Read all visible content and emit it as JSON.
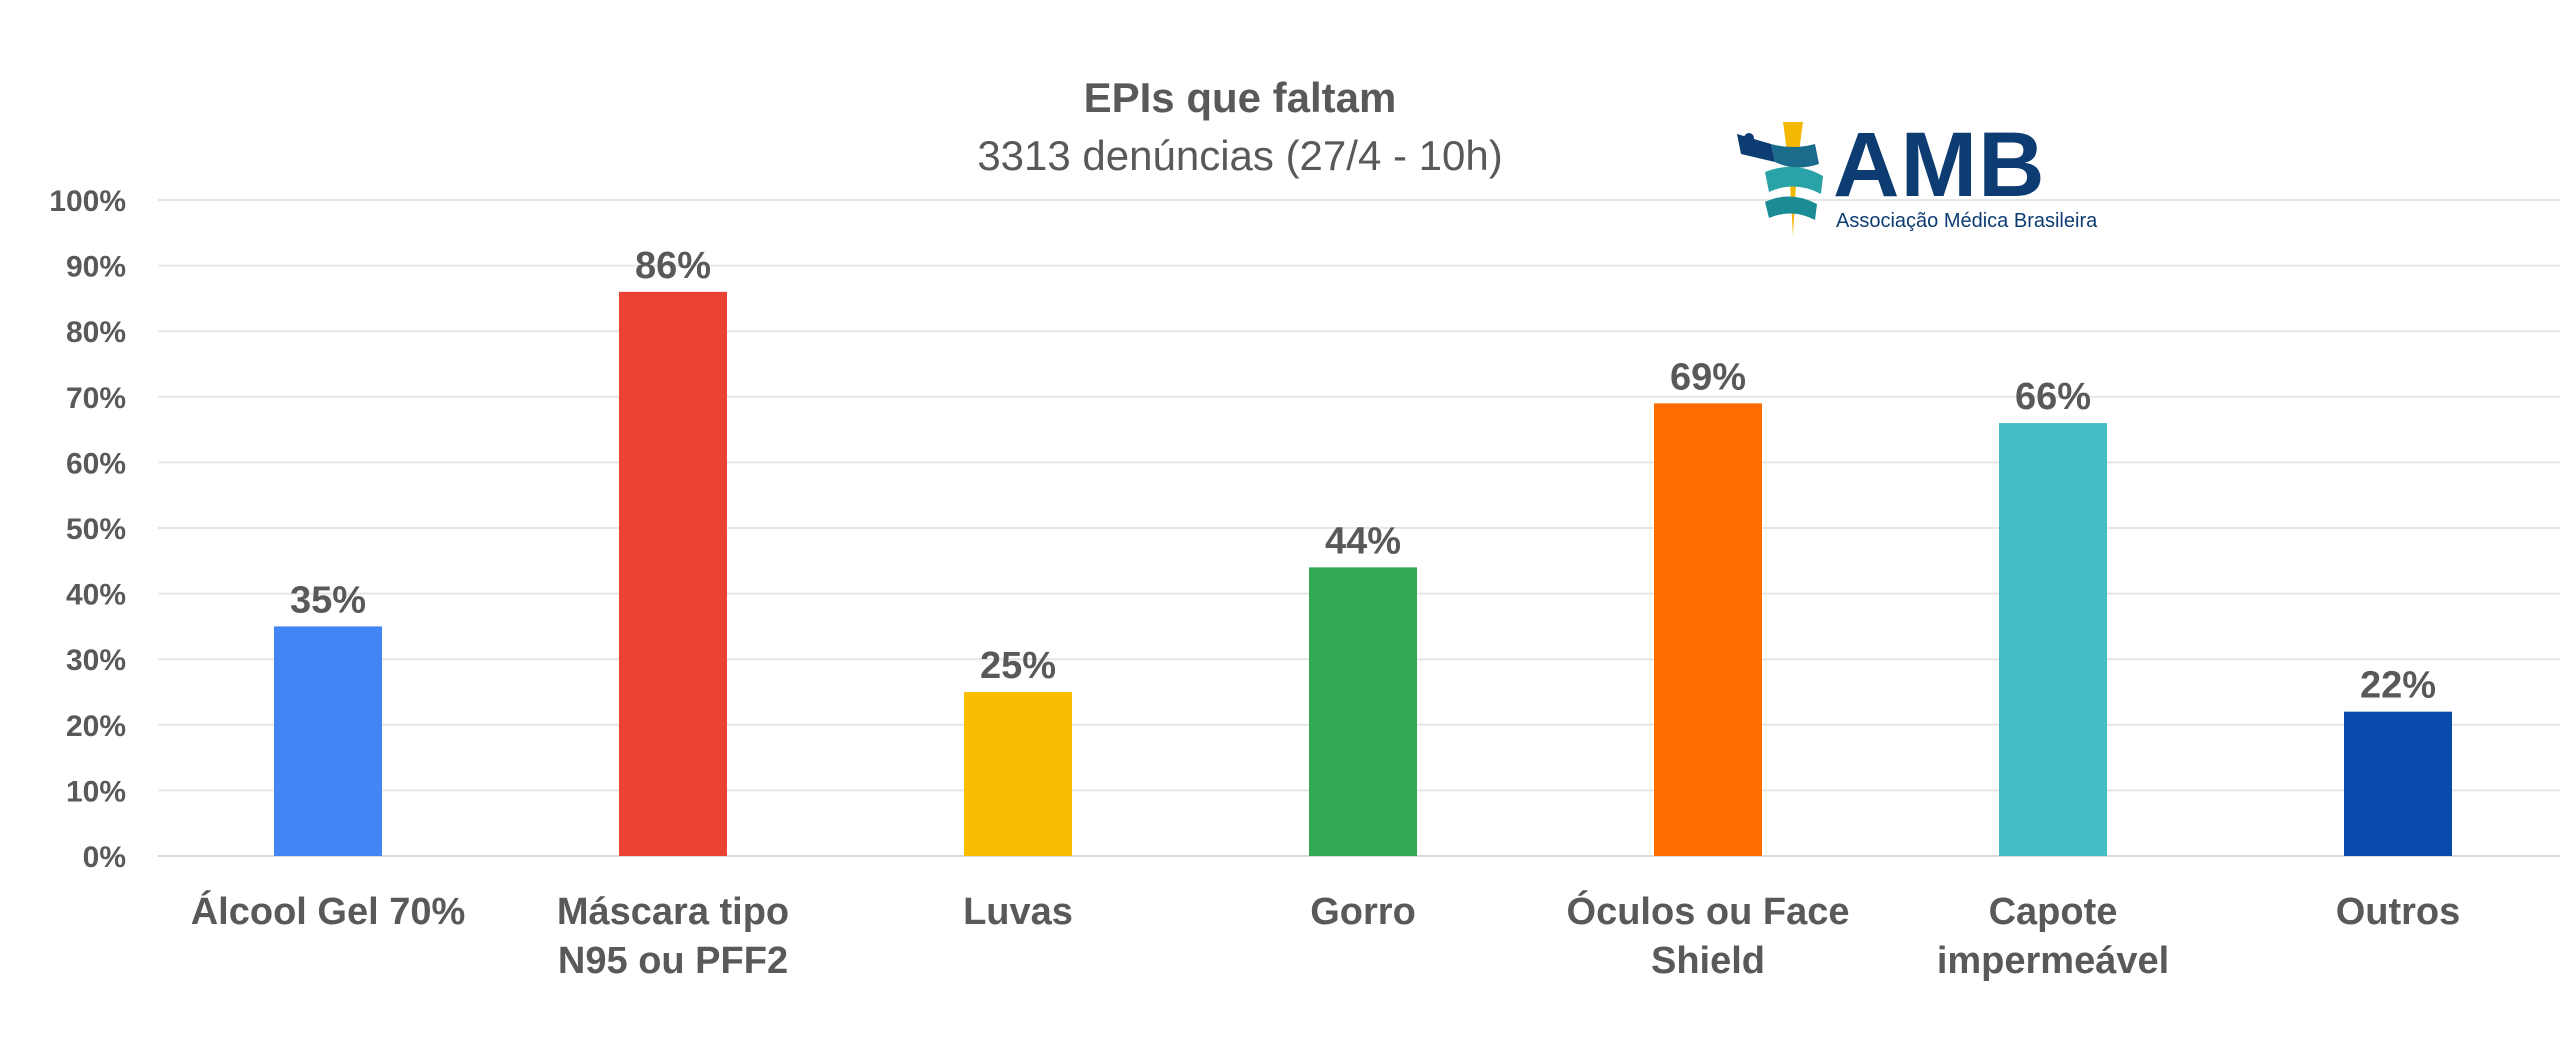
{
  "title": "EPIs que faltam",
  "subtitle": "3313 denúncias (27/4 - 10h)",
  "logo": {
    "name": "AMB",
    "tagline": "Associação Médica Brasileira",
    "icon": "caduceus-flag-icon"
  },
  "chart_data": {
    "type": "bar",
    "title": "EPIs que faltam",
    "subtitle": "3313 denúncias (27/4 - 10h)",
    "categories": [
      "Álcool Gel 70%",
      "Máscara tipo N95 ou PFF2",
      "Luvas",
      "Gorro",
      "Óculos ou Face Shield",
      "Capote impermeável",
      "Outros"
    ],
    "category_lines": [
      [
        "Álcool Gel 70%"
      ],
      [
        "Máscara tipo",
        "N95 ou PFF2"
      ],
      [
        "Luvas"
      ],
      [
        "Gorro"
      ],
      [
        "Óculos ou Face",
        "Shield"
      ],
      [
        "Capote",
        "impermeável"
      ],
      [
        "Outros"
      ]
    ],
    "values": [
      35,
      86,
      25,
      44,
      69,
      66,
      22
    ],
    "data_labels": [
      "35%",
      "86%",
      "25%",
      "44%",
      "69%",
      "66%",
      "22%"
    ],
    "colors": [
      "#4285f4",
      "#ea4335",
      "#fbbc04",
      "#34a853",
      "#ff6d01",
      "#46bdc6",
      "#0b4aad"
    ],
    "yticks": [
      "0%",
      "10%",
      "20%",
      "30%",
      "40%",
      "50%",
      "60%",
      "70%",
      "80%",
      "90%",
      "100%"
    ],
    "ylim": [
      0,
      100
    ],
    "grid": true,
    "legend": "none"
  }
}
